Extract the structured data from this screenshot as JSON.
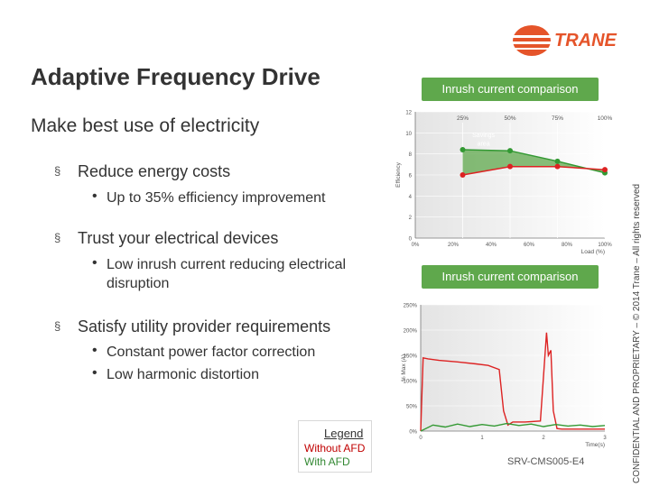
{
  "slide": {
    "title": "Adaptive Frequency Drive",
    "subtitle": "Make best use of electricity",
    "logo_text": "TRANE",
    "brand_color": "#e5542a",
    "bullets": [
      {
        "text": "Reduce energy costs",
        "sub": [
          "Up to 35% efficiency improvement"
        ]
      },
      {
        "text": "Trust your electrical devices",
        "sub": [
          "Low inrush current reducing electrical disruption"
        ]
      },
      {
        "text": "Satisfy utility provider requirements",
        "sub": [
          "Constant power factor correction",
          "Low harmonic distortion"
        ]
      }
    ],
    "bullet_mark": "§",
    "sub_mark": "•",
    "footer_code": "SRV-CMS005-E4",
    "confidential": "CONFIDENTIAL AND PROPRIETARY – © 2014 Trane – All rights reserved",
    "legend": {
      "title": "Legend",
      "without": "Without AFD",
      "with": "With AFD"
    },
    "colors": {
      "header_green": "#5fa84c",
      "without_afd": "#dd2222",
      "with_afd": "#339933"
    }
  },
  "chart_data": [
    {
      "type": "line",
      "header": "Inrush current comparison",
      "ylabel": "Efficiency",
      "xlabel": "Load (%)",
      "ylim": [
        0,
        12
      ],
      "xlim": [
        0,
        100
      ],
      "yticks": [
        "12",
        "10",
        "8",
        "6",
        "4",
        "2",
        "0"
      ],
      "xticks": [
        "0%",
        "20%",
        "40%",
        "60%",
        "80%",
        "100%"
      ],
      "top_ticks": [
        "25%",
        "50%",
        "75%",
        "100%"
      ],
      "annotation": "Savings area",
      "series": [
        {
          "color": "#339933",
          "x": [
            25,
            50,
            75,
            100
          ],
          "y": [
            8.4,
            8.3,
            7.3,
            6.2
          ]
        },
        {
          "color": "#dd2222",
          "x": [
            25,
            50,
            75,
            100
          ],
          "y": [
            6.0,
            6.8,
            6.8,
            6.5
          ]
        }
      ]
    },
    {
      "type": "line",
      "header": "Inrush current comparison",
      "ylabel": "% Max (A)",
      "xlabel": "Time(s)",
      "ylim": [
        0,
        250
      ],
      "xlim": [
        0,
        3
      ],
      "yticks": [
        "250%",
        "200%",
        "150%",
        "100%",
        "50%",
        "0%"
      ],
      "xticks": [
        "0",
        "1",
        "2",
        "3"
      ],
      "series": [
        {
          "color": "#dd2222",
          "x": [
            0,
            0.04,
            0.12,
            0.3,
            0.6,
            0.9,
            1.1,
            1.28,
            1.35,
            1.42,
            1.5,
            1.7,
            1.95,
            2.05,
            2.08,
            2.12,
            2.16,
            2.22,
            2.3,
            2.6,
            3.0
          ],
          "y": [
            0,
            145,
            143,
            140,
            137,
            133,
            130,
            122,
            40,
            12,
            18,
            18,
            20,
            195,
            150,
            160,
            40,
            5,
            4,
            4,
            4
          ]
        },
        {
          "color": "#339933",
          "x": [
            0,
            0.2,
            0.4,
            0.6,
            0.8,
            1.0,
            1.2,
            1.4,
            1.6,
            1.8,
            2.0,
            2.2,
            2.4,
            2.6,
            2.8,
            3.0
          ],
          "y": [
            0,
            12,
            8,
            14,
            9,
            13,
            10,
            15,
            11,
            14,
            9,
            13,
            10,
            12,
            9,
            11
          ]
        }
      ]
    }
  ]
}
